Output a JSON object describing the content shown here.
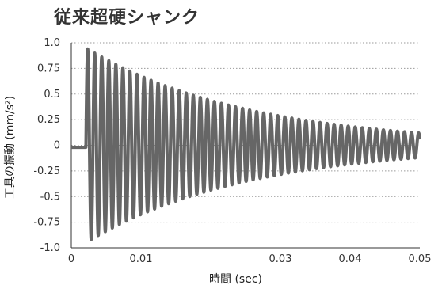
{
  "chart_data": {
    "type": "line",
    "title": "従来超硬シャンク",
    "xlabel": "時間 (sec)",
    "ylabel": "工具の振動 (mm/s²)",
    "xlim": [
      0,
      0.05
    ],
    "ylim": [
      -1.0,
      1.0
    ],
    "x_ticks": [
      0,
      0.01,
      0.03,
      0.04,
      0.05
    ],
    "x_tick_labels": [
      "0",
      "0.01",
      "0.03",
      "0.04",
      "0.05"
    ],
    "y_ticks": [
      1.0,
      0.75,
      0.5,
      0.25,
      0,
      -0.25,
      -0.5,
      -0.75,
      -1.0
    ],
    "y_tick_labels": [
      "1.0",
      "0.75",
      "0.5",
      "0.25",
      "0",
      "-0.25",
      "-0.5",
      "-0.75",
      "-1.0"
    ],
    "grid": "horizontal-dotted",
    "series": [
      {
        "color": "#666666",
        "onset_time": 0.0021,
        "frequency_hz": 990,
        "initial_amplitude": 0.95,
        "final_amplitude": 0.12,
        "baseline": -0.02
      }
    ]
  }
}
